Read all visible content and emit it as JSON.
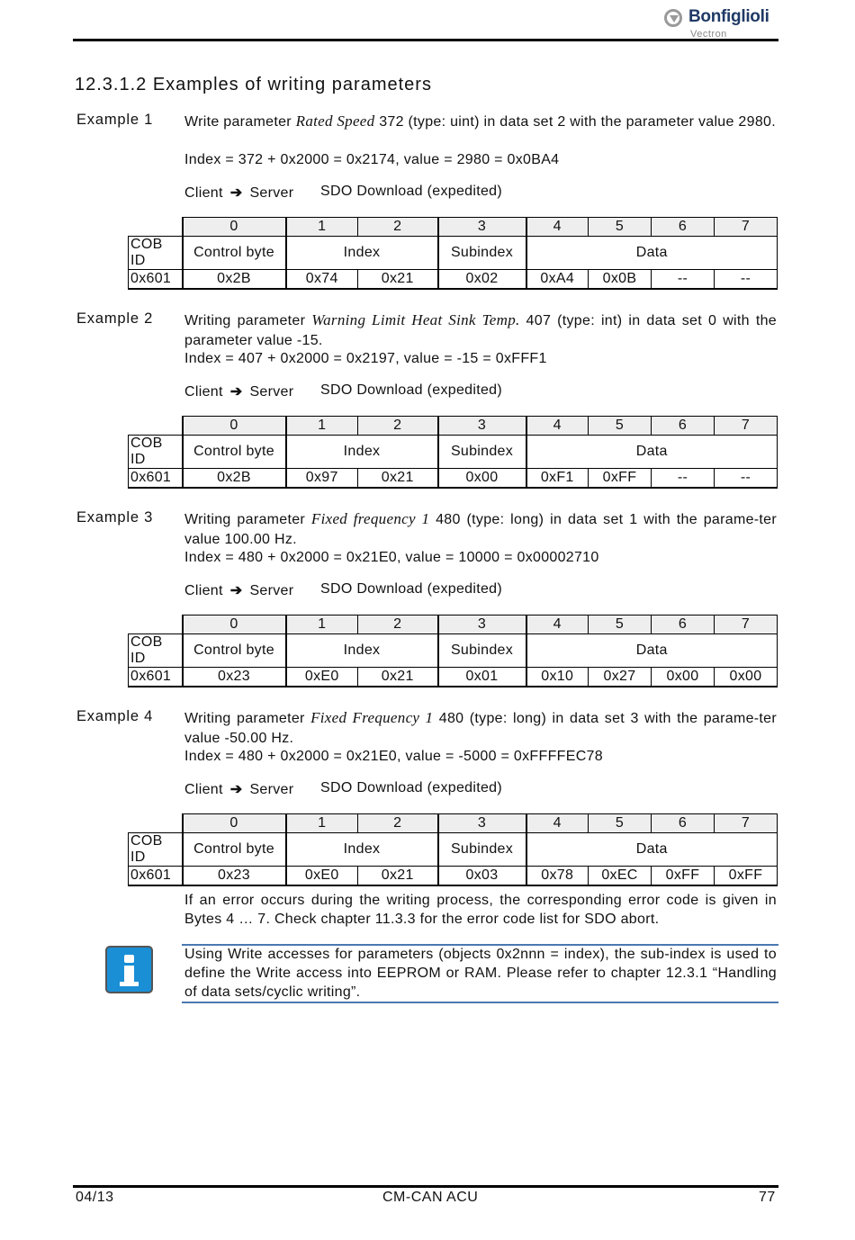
{
  "header": {
    "logo_text": "Bonfiglioli",
    "logo_sub": "Vectron"
  },
  "section_title": "12.3.1.2  Examples of writing parameters",
  "examples": [
    {
      "label": "Example 1",
      "desc_before": "Write parameter ",
      "param_name": "Rated Speed",
      "desc_after": " 372 (type: uint) in data set 2 with the parameter value 2980.",
      "index_line": "Index = 372 + 0x2000 = 0x2174, value = 2980 = 0x0BA4",
      "client": "Client",
      "arrow": "➔",
      "server": "Server",
      "sdo": "SDO Download (expedited)",
      "cob_id": "0x601",
      "control_byte": "0x2B",
      "bytes": [
        "0x74",
        "0x21",
        "0x02",
        "0xA4",
        "0x0B",
        "--",
        "--"
      ]
    },
    {
      "label": "Example 2",
      "desc_before": "Writing parameter ",
      "param_name": "Warning Limit Heat Sink Temp.",
      "desc_after": " 407 (type: int) in data set 0 with the parameter value -15.",
      "index_line": "Index = 407 + 0x2000 = 0x2197, value = -15 = 0xFFF1",
      "client": "Client",
      "arrow": "➔",
      "server": "Server",
      "sdo": "SDO Download (expedited)",
      "cob_id": "0x601",
      "control_byte": "0x2B",
      "bytes": [
        "0x97",
        "0x21",
        "0x00",
        "0xF1",
        "0xFF",
        "--",
        "--"
      ]
    },
    {
      "label": "Example 3",
      "desc_before": "Writing parameter ",
      "param_name": "Fixed frequency 1",
      "desc_after": " 480 (type: long) in data set 1 with the parame-ter value 100.00 Hz.",
      "index_line": "Index = 480 + 0x2000 = 0x21E0, value = 10000 = 0x00002710",
      "client": "Client",
      "arrow": "➔",
      "server": "Server",
      "sdo": "SDO Download (expedited)",
      "cob_id": "0x601",
      "control_byte": "0x23",
      "bytes": [
        "0xE0",
        "0x21",
        "0x01",
        "0x10",
        "0x27",
        "0x00",
        "0x00"
      ]
    },
    {
      "label": "Example 4",
      "desc_before": "Writing parameter ",
      "param_name": "Fixed Frequency 1",
      "desc_after": " 480 (type: long) in data set 3 with the parame-ter value -50.00 Hz.",
      "index_line": "Index = 480 + 0x2000 = 0x21E0, value = -5000 = 0xFFFFEC78",
      "client": "Client",
      "arrow": "➔",
      "server": "Server",
      "sdo": "SDO Download (expedited)",
      "cob_id": "0x601",
      "control_byte": "0x23",
      "bytes": [
        "0xE0",
        "0x21",
        "0x03",
        "0x78",
        "0xEC",
        "0xFF",
        "0xFF"
      ]
    }
  ],
  "table_labels": {
    "byte_numbers": [
      "0",
      "1",
      "2",
      "3",
      "4",
      "5",
      "6",
      "7"
    ],
    "cob_id": "COB ID",
    "control_byte": "Control byte",
    "index": "Index",
    "subindex": "Subindex",
    "data": "Data"
  },
  "error_note": "If an error occurs during the writing process, the corresponding error code is given in Bytes 4 … 7. Check chapter 11.3.3 for the error code list for SDO abort.",
  "info_note": "Using Write accesses for parameters (objects 0x2nnn = index), the sub-index is used to define the Write access into EEPROM or RAM. Please refer to chapter 12.3.1 “Handling of data sets/cyclic writing”.",
  "info_icon": "info-icon",
  "footer": {
    "date": "04/13",
    "doc": "CM-CAN ACU",
    "page": "77"
  }
}
